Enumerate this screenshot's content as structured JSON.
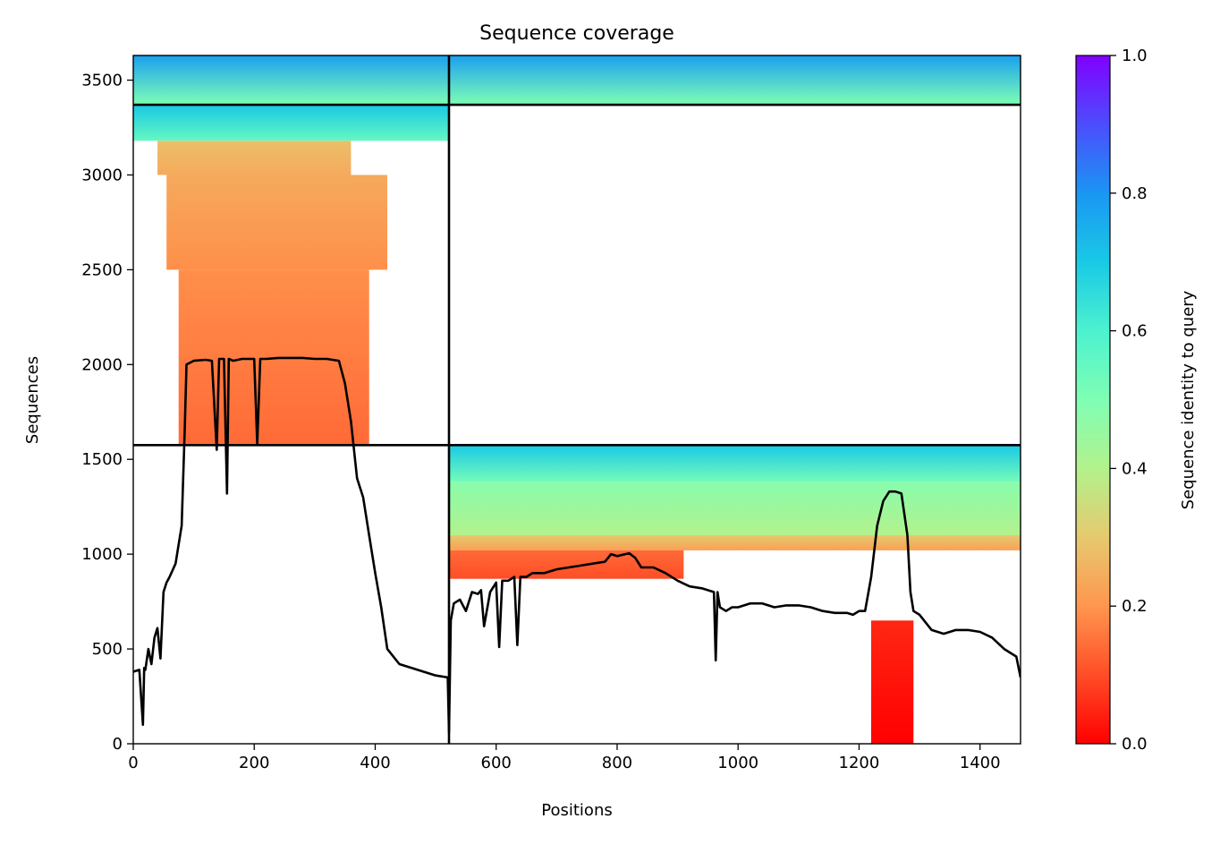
{
  "chart_data": {
    "type": "heatmap",
    "title": "Sequence coverage",
    "xlabel": "Positions",
    "ylabel": "Sequences",
    "xlim": [
      0,
      1467
    ],
    "ylim": [
      0,
      3630
    ],
    "xticks": [
      0,
      200,
      400,
      600,
      800,
      1000,
      1200,
      1400
    ],
    "yticks": [
      0,
      500,
      1000,
      1500,
      2000,
      2500,
      3000,
      3500
    ],
    "colorbar": {
      "label": "Sequence identity to query",
      "ticks": [
        0.0,
        0.2,
        0.4,
        0.6,
        0.8,
        1.0
      ],
      "tick_labels": [
        "0.0",
        "0.2",
        "0.4",
        "0.6",
        "0.8",
        "1.0"
      ],
      "colormap": "rainbow_r"
    },
    "chain_boundaries_x": [
      522
    ],
    "chain_boundaries_y": [
      1575,
      3370
    ],
    "coverage_blocks": [
      {
        "x0": 0,
        "x1": 522,
        "y0": 3370,
        "y1": 3630,
        "identity_top": 0.78,
        "identity_bottom": 0.5
      },
      {
        "x0": 522,
        "x1": 1467,
        "y0": 3370,
        "y1": 3630,
        "identity_top": 0.78,
        "identity_bottom": 0.5
      },
      {
        "x0": 0,
        "x1": 522,
        "y0": 3180,
        "y1": 3370,
        "identity_top": 0.7,
        "identity_bottom": 0.55
      },
      {
        "x0": 40,
        "x1": 360,
        "y0": 3000,
        "y1": 3180,
        "identity_top": 0.28,
        "identity_bottom": 0.24
      },
      {
        "x0": 55,
        "x1": 420,
        "y0": 2500,
        "y1": 3000,
        "identity_top": 0.24,
        "identity_bottom": 0.19
      },
      {
        "x0": 75,
        "x1": 390,
        "y0": 1575,
        "y1": 2500,
        "identity_top": 0.19,
        "identity_bottom": 0.14
      },
      {
        "x0": 522,
        "x1": 1467,
        "y0": 1380,
        "y1": 1575,
        "identity_top": 0.7,
        "identity_bottom": 0.52
      },
      {
        "x0": 522,
        "x1": 1467,
        "y0": 1100,
        "y1": 1380,
        "identity_top": 0.48,
        "identity_bottom": 0.4
      },
      {
        "x0": 522,
        "x1": 1467,
        "y0": 1020,
        "y1": 1100,
        "identity_top": 0.3,
        "identity_bottom": 0.22
      },
      {
        "x0": 522,
        "x1": 910,
        "y0": 870,
        "y1": 1020,
        "identity_top": 0.14,
        "identity_bottom": 0.1
      },
      {
        "x0": 1220,
        "x1": 1290,
        "y0": 0,
        "y1": 650,
        "identity_top": 0.05,
        "identity_bottom": 0.0
      }
    ],
    "coverage_line": {
      "name": "",
      "x": [
        0,
        10,
        16,
        18,
        20,
        25,
        30,
        35,
        40,
        45,
        50,
        55,
        60,
        70,
        80,
        85,
        88,
        100,
        120,
        130,
        138,
        142,
        150,
        155,
        158,
        165,
        180,
        200,
        205,
        210,
        220,
        240,
        260,
        280,
        300,
        320,
        340,
        350,
        360,
        370,
        380,
        390,
        400,
        410,
        420,
        440,
        460,
        480,
        500,
        520,
        522,
        525,
        530,
        540,
        550,
        560,
        570,
        575,
        580,
        590,
        600,
        605,
        610,
        620,
        630,
        635,
        640,
        650,
        660,
        680,
        700,
        720,
        740,
        760,
        780,
        790,
        800,
        820,
        830,
        840,
        860,
        880,
        900,
        920,
        940,
        960,
        963,
        966,
        970,
        980,
        990,
        1000,
        1020,
        1040,
        1060,
        1080,
        1100,
        1120,
        1140,
        1160,
        1180,
        1190,
        1200,
        1210,
        1220,
        1230,
        1240,
        1250,
        1260,
        1270,
        1280,
        1285,
        1290,
        1300,
        1320,
        1340,
        1360,
        1380,
        1400,
        1420,
        1440,
        1460,
        1467
      ],
      "y": [
        380,
        390,
        100,
        400,
        390,
        500,
        420,
        560,
        610,
        450,
        800,
        850,
        880,
        950,
        1150,
        1650,
        2000,
        2020,
        2025,
        2020,
        1550,
        2030,
        2030,
        1320,
        2030,
        2020,
        2030,
        2030,
        1580,
        2030,
        2030,
        2035,
        2035,
        2035,
        2030,
        2030,
        2020,
        1900,
        1700,
        1400,
        1300,
        1100,
        900,
        720,
        500,
        420,
        400,
        380,
        360,
        350,
        60,
        650,
        740,
        760,
        700,
        800,
        790,
        810,
        620,
        800,
        850,
        510,
        860,
        860,
        880,
        520,
        880,
        880,
        900,
        900,
        920,
        930,
        940,
        950,
        960,
        1000,
        990,
        1005,
        980,
        930,
        930,
        900,
        860,
        830,
        820,
        800,
        440,
        800,
        720,
        700,
        720,
        720,
        740,
        740,
        720,
        730,
        730,
        720,
        700,
        690,
        690,
        680,
        700,
        700,
        880,
        1150,
        1280,
        1330,
        1330,
        1320,
        1100,
        800,
        700,
        680,
        600,
        580,
        600,
        600,
        590,
        560,
        500,
        460,
        350
      ]
    }
  }
}
